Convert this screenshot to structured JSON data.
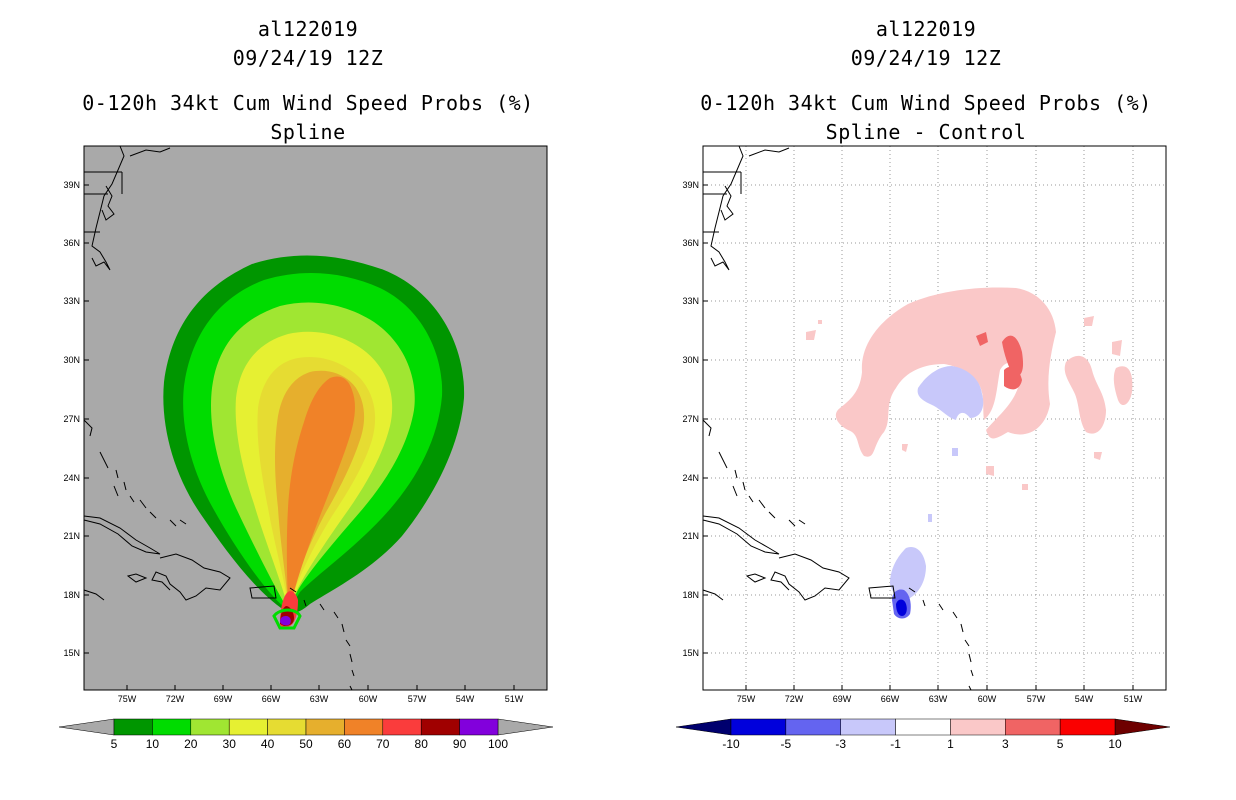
{
  "left": {
    "title_lines": [
      "al122019",
      "09/24/19 12Z",
      "0-120h 34kt Cum Wind Speed Probs (%)",
      "Spline"
    ],
    "background_color": "#a9a9a9"
  },
  "right": {
    "title_lines": [
      "al122019",
      "09/24/19 12Z",
      "0-120h 34kt Cum Wind Speed Probs (%)",
      "Spline - Control"
    ],
    "background_color": "#ffffff"
  },
  "axes": {
    "lat_ticks": [
      "39N",
      "36N",
      "33N",
      "30N",
      "27N",
      "24N",
      "21N",
      "18N",
      "15N"
    ],
    "lon_ticks": [
      "75W",
      "72W",
      "69W",
      "66W",
      "63W",
      "60W",
      "57W",
      "54W",
      "51W"
    ]
  },
  "chart_data": [
    {
      "type": "heatmap",
      "panel": "left",
      "title": "0-120h 34kt Cum Wind Speed Probs (%) - Spline",
      "units": "%",
      "colorbar": {
        "levels": [
          "5",
          "10",
          "20",
          "30",
          "40",
          "50",
          "60",
          "70",
          "80",
          "90",
          "100"
        ],
        "colors": [
          "#009600",
          "#00dc00",
          "#a0e632",
          "#e6f032",
          "#e6dc32",
          "#e6af2d",
          "#f08228",
          "#fa3c3c",
          "#a00000",
          "#8200dc"
        ],
        "ends": {
          "low": "#a9a9a9",
          "high": "#a9a9a9"
        }
      },
      "probability_contours_pct": [
        5,
        10,
        20,
        30,
        40,
        50,
        60,
        70,
        80,
        90
      ]
    },
    {
      "type": "heatmap",
      "panel": "right",
      "title": "0-120h 34kt Cum Wind Speed Probs (%) - Spline - Control",
      "units": "%",
      "colorbar": {
        "levels": [
          "-10",
          "-5",
          "-3",
          "-1",
          "1",
          "3",
          "5",
          "10"
        ],
        "colors": [
          "#0000dc",
          "#6464f0",
          "#c8c8fa",
          "#ffffff",
          "#fac8c8",
          "#f06464",
          "#fa0000"
        ],
        "ends": {
          "low": "#00006e",
          "high": "#6e0000"
        }
      }
    }
  ]
}
